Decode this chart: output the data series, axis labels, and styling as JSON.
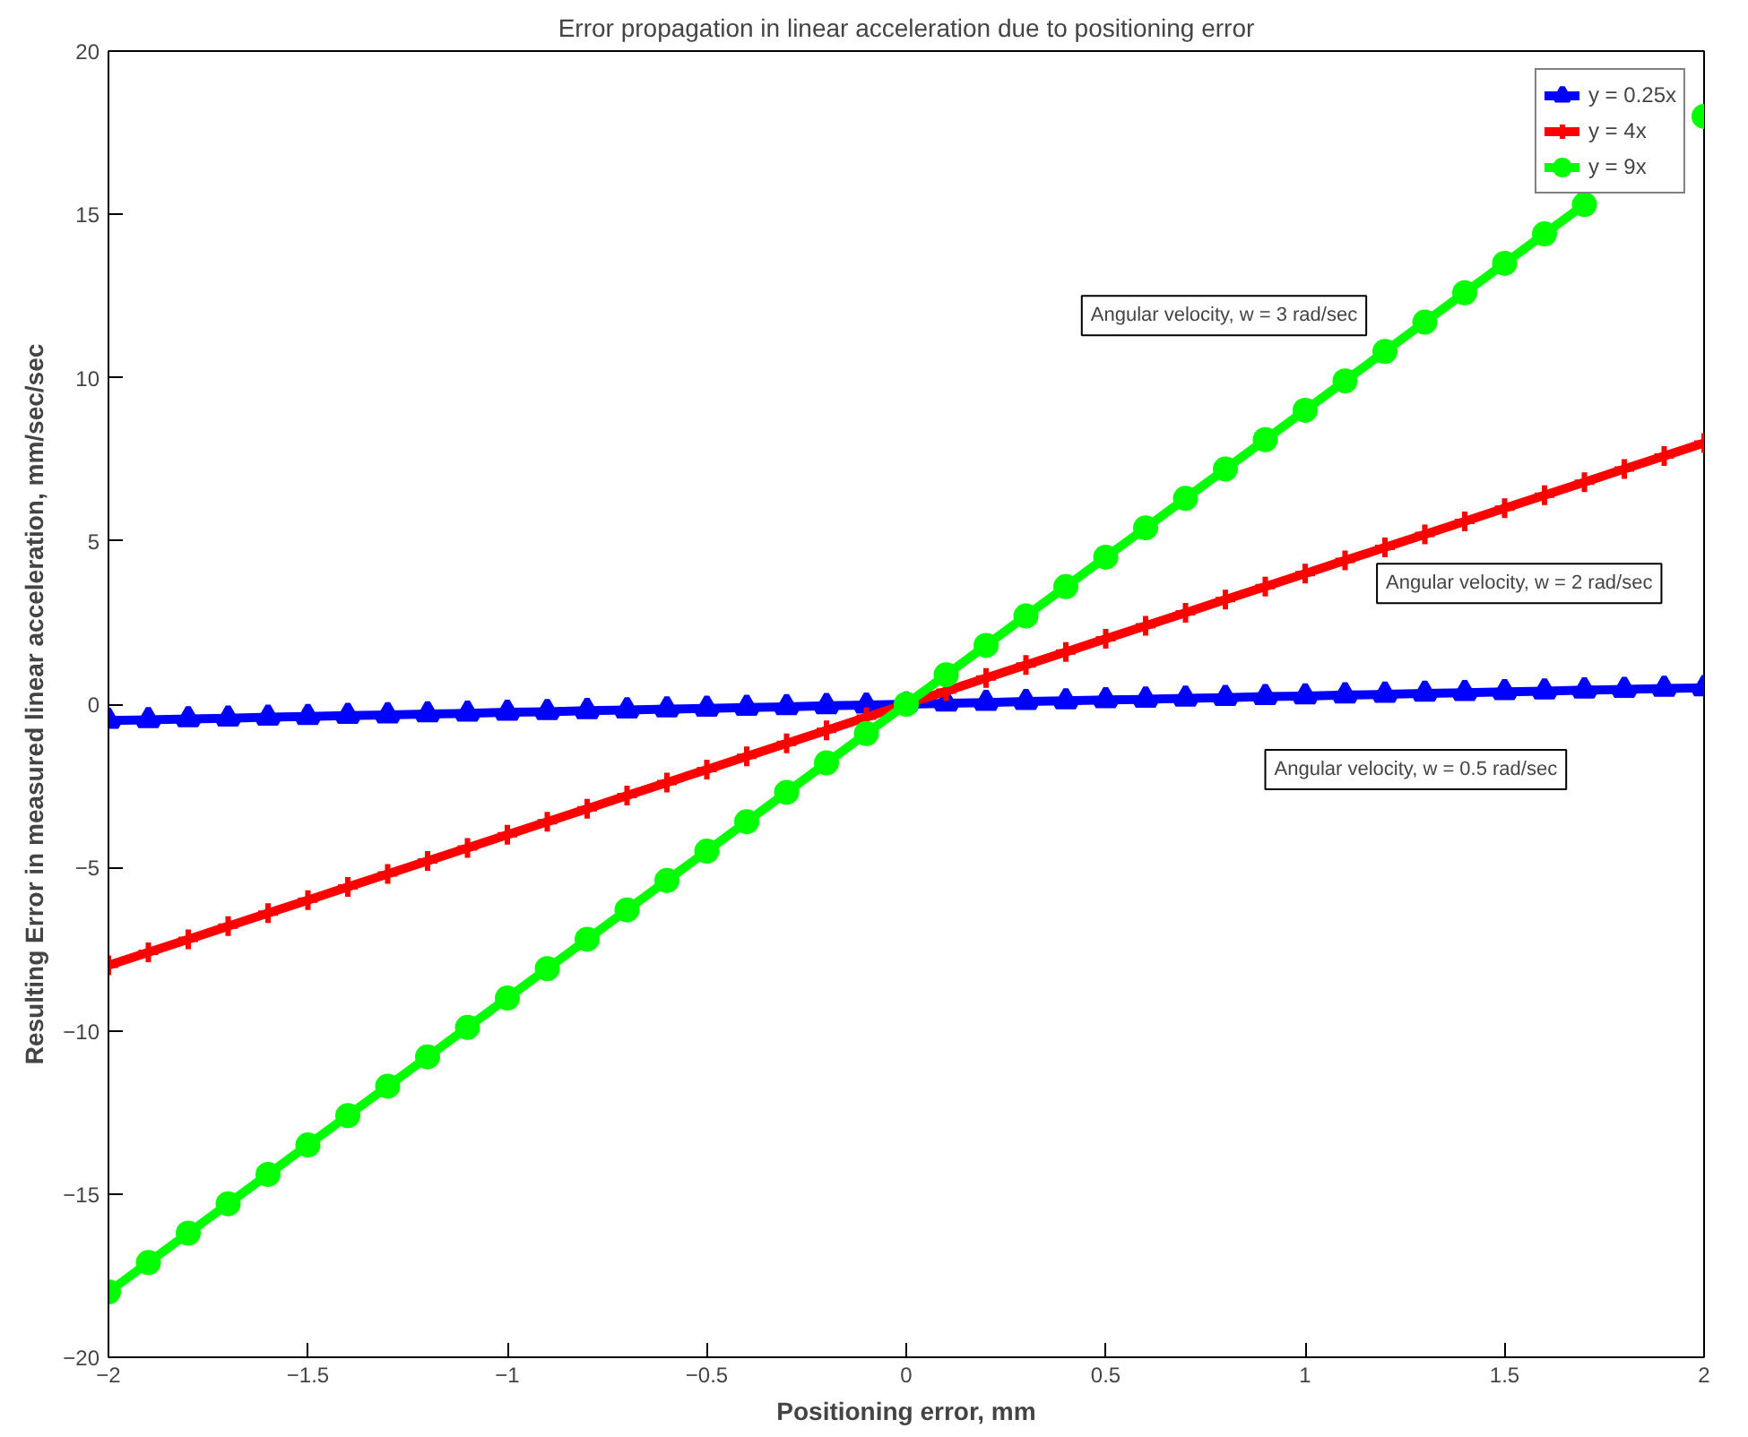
{
  "chart_data": {
    "type": "line",
    "title": "Error propagation in linear acceleration due to positioning error",
    "xlabel": "Positioning error, mm",
    "ylabel": "Resulting Error in measured linear acceleration, mm/sec/sec",
    "x": [
      -2,
      -1.9,
      -1.8,
      -1.7,
      -1.6,
      -1.5,
      -1.4,
      -1.3,
      -1.2,
      -1.1,
      -1,
      -0.9,
      -0.8,
      -0.7,
      -0.6,
      -0.5,
      -0.4,
      -0.3,
      -0.2,
      -0.1,
      0,
      0.1,
      0.2,
      0.3,
      0.4,
      0.5,
      0.6,
      0.7,
      0.8,
      0.9,
      1,
      1.1,
      1.2,
      1.3,
      1.4,
      1.5,
      1.6,
      1.7,
      1.8,
      1.9,
      2
    ],
    "series": [
      {
        "name": "y = 0.25x",
        "color": "#0000ff",
        "marker": "triangle",
        "values": [
          -0.5,
          -0.48,
          -0.45,
          -0.43,
          -0.4,
          -0.38,
          -0.35,
          -0.33,
          -0.3,
          -0.28,
          -0.25,
          -0.23,
          -0.2,
          -0.18,
          -0.15,
          -0.13,
          -0.1,
          -0.08,
          -0.05,
          -0.03,
          0,
          0.03,
          0.05,
          0.08,
          0.1,
          0.13,
          0.15,
          0.18,
          0.2,
          0.23,
          0.25,
          0.28,
          0.3,
          0.33,
          0.35,
          0.38,
          0.4,
          0.43,
          0.45,
          0.48,
          0.5
        ]
      },
      {
        "name": "y = 4x",
        "color": "#ff0000",
        "marker": "cross",
        "values": [
          -8,
          -7.6,
          -7.2,
          -6.8,
          -6.4,
          -6,
          -5.6,
          -5.2,
          -4.8,
          -4.4,
          -4,
          -3.6,
          -3.2,
          -2.8,
          -2.4,
          -2,
          -1.6,
          -1.2,
          -0.8,
          -0.4,
          0,
          0.4,
          0.8,
          1.2,
          1.6,
          2,
          2.4,
          2.8,
          3.2,
          3.6,
          4,
          4.4,
          4.8,
          5.2,
          5.6,
          6,
          6.4,
          6.8,
          7.2,
          7.6,
          8
        ]
      },
      {
        "name": "y = 9x",
        "color": "#00ff00",
        "marker": "circle",
        "values": [
          -18,
          -17.1,
          -16.2,
          -15.3,
          -14.4,
          -13.5,
          -12.6,
          -11.7,
          -10.8,
          -9.9,
          -9,
          -8.1,
          -7.2,
          -6.3,
          -5.4,
          -4.5,
          -3.6,
          -2.7,
          -1.8,
          -0.9,
          0,
          0.9,
          1.8,
          2.7,
          3.6,
          4.5,
          5.4,
          6.3,
          7.2,
          8.1,
          9,
          9.9,
          10.8,
          11.7,
          12.6,
          13.5,
          14.4,
          15.3,
          null,
          null,
          18
        ]
      }
    ],
    "xlim": [
      -2,
      2
    ],
    "ylim": [
      -20,
      20
    ],
    "xticks": [
      -2,
      -1.5,
      -1,
      -0.5,
      0,
      0.5,
      1,
      1.5,
      2
    ],
    "yticks": [
      -20,
      -15,
      -10,
      -5,
      0,
      5,
      10,
      15,
      20
    ],
    "grid": false,
    "legend": "top right",
    "line_style": "solid",
    "annotations": [
      "Angular velocity, w = 3 rad/sec",
      "Angular velocity, w = 2 rad/sec",
      "Angular velocity, w = 0.5 rad/sec"
    ]
  }
}
